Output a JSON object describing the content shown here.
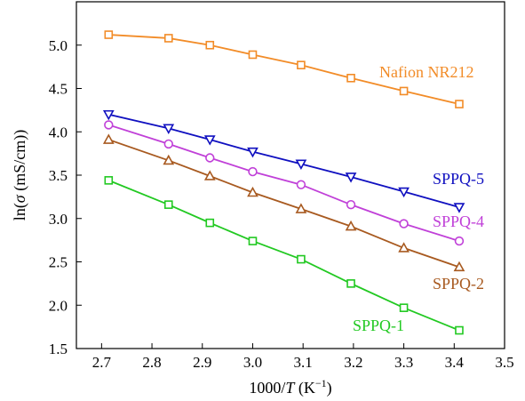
{
  "chart_data": {
    "type": "line",
    "xlabel_parts": [
      "1000/",
      "T",
      " (K",
      "−1",
      ")"
    ],
    "ylabel_parts": [
      "ln(",
      "σ",
      " (mS/cm))"
    ],
    "xlim": [
      2.65,
      3.5
    ],
    "ylim": [
      1.5,
      5.5
    ],
    "x_ticks": [
      2.7,
      2.8,
      2.9,
      3.0,
      3.1,
      3.2,
      3.3,
      3.4,
      3.5
    ],
    "x_tick_labels": [
      "2.7",
      "2.8",
      "2.9",
      "3.0",
      "3.1",
      "3.2",
      "3.3",
      "3.4",
      "3.5"
    ],
    "y_ticks": [
      1.5,
      2.0,
      2.5,
      3.0,
      3.5,
      4.0,
      4.5,
      5.0
    ],
    "y_tick_labels": [
      "1.5",
      "2.0",
      "2.5",
      "3.0",
      "3.5",
      "4.0",
      "4.5",
      "5.0"
    ],
    "grid": false,
    "x": [
      2.714,
      2.833,
      2.915,
      3.0,
      3.096,
      3.195,
      3.3,
      3.41
    ],
    "series": [
      {
        "name": "Nafion NR212",
        "color": "#f28c28",
        "marker": "square",
        "values": [
          5.12,
          5.08,
          5.0,
          4.89,
          4.77,
          4.62,
          4.47,
          4.32
        ]
      },
      {
        "name": "SPPQ-5",
        "color": "#1010c0",
        "marker": "triangle-down",
        "values": [
          4.2,
          4.04,
          3.91,
          3.77,
          3.63,
          3.48,
          3.31,
          3.13
        ]
      },
      {
        "name": "SPPQ-4",
        "color": "#c040d8",
        "marker": "circle",
        "values": [
          4.08,
          3.86,
          3.7,
          3.54,
          3.39,
          3.16,
          2.94,
          2.74
        ]
      },
      {
        "name": "SPPQ-2",
        "color": "#a85a20",
        "marker": "triangle-up",
        "values": [
          3.91,
          3.67,
          3.49,
          3.3,
          3.11,
          2.91,
          2.66,
          2.44
        ]
      },
      {
        "name": "SPPQ-1",
        "color": "#22c922",
        "marker": "square",
        "values": [
          3.44,
          3.16,
          2.95,
          2.74,
          2.53,
          2.25,
          1.97,
          1.71
        ]
      }
    ],
    "labels": {
      "nafion": "Nafion NR212",
      "sppq5": "SPPQ-5",
      "sppq4": "SPPQ-4",
      "sppq2": "SPPQ-2",
      "sppq1": "SPPQ-1"
    }
  }
}
